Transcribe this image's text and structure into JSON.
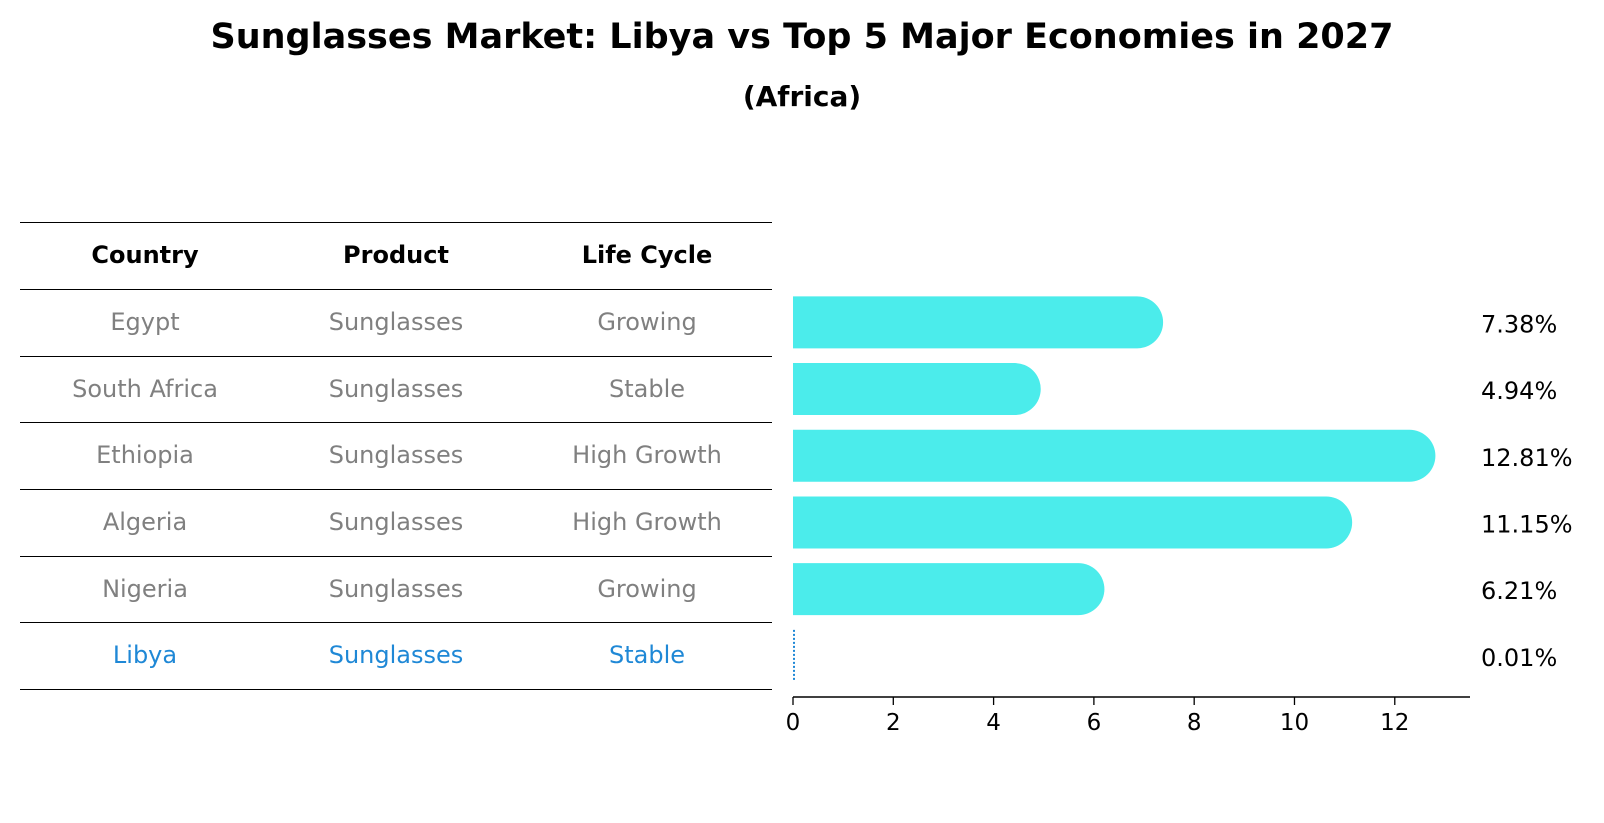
{
  "title": "Sunglasses Market: Libya vs Top 5 Major Economies in 2027",
  "subtitle": "(Africa)",
  "table": {
    "headers": [
      "Country",
      "Product",
      "Life Cycle"
    ],
    "rows": [
      [
        "Egypt",
        "Sunglasses",
        "Growing"
      ],
      [
        "South Africa",
        "Sunglasses",
        "Stable"
      ],
      [
        "Ethiopia",
        "Sunglasses",
        "High Growth"
      ],
      [
        "Algeria",
        "Sunglasses",
        "High Growth"
      ],
      [
        "Nigeria",
        "Sunglasses",
        "Growing"
      ],
      [
        "Libya",
        "Sunglasses",
        "Stable"
      ]
    ],
    "highlight_row": 5
  },
  "colors": {
    "bar": "#4beceb",
    "highlight": "#1f88d6",
    "muted": "#808080"
  },
  "chart_data": {
    "type": "bar",
    "orientation": "horizontal",
    "categories": [
      "Egypt",
      "South Africa",
      "Ethiopia",
      "Algeria",
      "Nigeria",
      "Libya"
    ],
    "values": [
      7.38,
      4.94,
      12.81,
      11.15,
      6.21,
      0.01
    ],
    "value_labels": [
      "7.38%",
      "4.94%",
      "12.81%",
      "11.15%",
      "6.21%",
      "0.01%"
    ],
    "xticks": [
      0,
      2,
      4,
      6,
      8,
      10,
      12
    ],
    "xlim": [
      0,
      13.5
    ],
    "grid": false
  }
}
